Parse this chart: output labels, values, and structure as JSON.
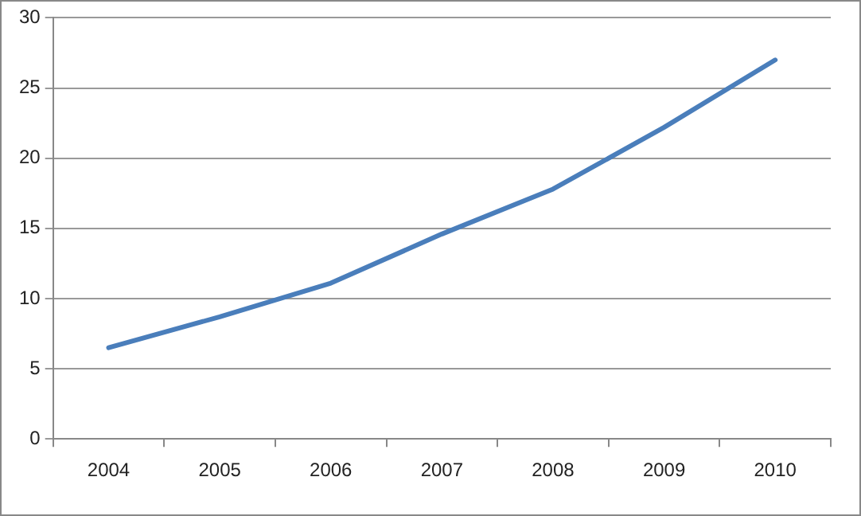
{
  "chart_data": {
    "type": "line",
    "categories": [
      "2004",
      "2005",
      "2006",
      "2007",
      "2008",
      "2009",
      "2010"
    ],
    "series": [
      {
        "color": "#4a7ebb",
        "values": [
          6.5,
          8.7,
          11.1,
          14.6,
          17.8,
          22.2,
          27.0
        ]
      }
    ],
    "ylim": [
      0,
      30
    ],
    "yticks": [
      0,
      5,
      10,
      15,
      20,
      25,
      30
    ],
    "grid": "y",
    "legend": false,
    "marker": "none"
  }
}
